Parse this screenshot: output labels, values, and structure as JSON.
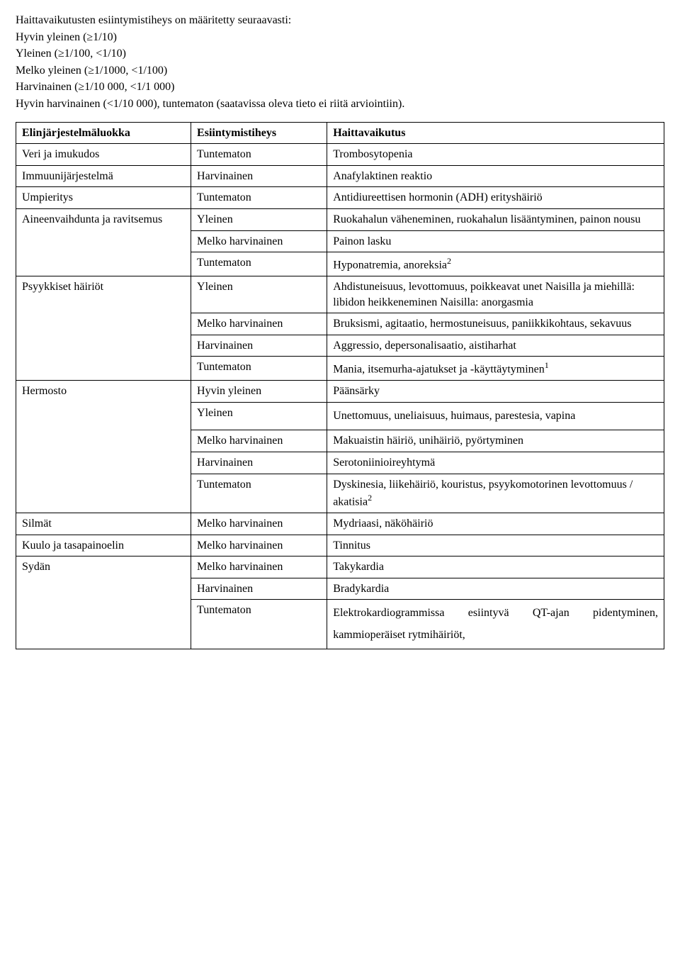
{
  "intro": {
    "l1": "Haittavaikutusten esiintymistiheys  on määritetty seuraavasti:",
    "l2": "Hyvin yleinen (≥1/10)",
    "l3": "Yleinen (≥1/100, <1/10)",
    "l4": "Melko yleinen (≥1/1000, <1/100)",
    "l5": "Harvinainen (≥1/10 000, <1/1 000)",
    "l6": "Hyvin harvinainen (<1/10 000), tuntematon (saatavissa oleva tieto ei riitä arviointiin)."
  },
  "headers": {
    "col1": "Elinjärjestelmäluokka",
    "col2": "Esiintymistiheys",
    "col3": "Haittavaikutus"
  },
  "rows": {
    "r1": {
      "system": "Veri ja imukudos",
      "freq": "Tuntematon",
      "effect": "Trombosytopenia"
    },
    "r2": {
      "system": "Immuunijärjestelmä",
      "freq": "Harvinainen",
      "effect": "Anafylaktinen reaktio"
    },
    "r3": {
      "system": "Umpieritys",
      "freq": "Tuntematon",
      "effect": "Antidiureettisen hormonin (ADH) erityshäiriö"
    },
    "r4": {
      "system": "Aineenvaihdunta ja ravitsemus",
      "freq": "Yleinen",
      "effect": "Ruokahalun väheneminen,\nruokahalun lisääntyminen, painon nousu"
    },
    "r5": {
      "freq": "Melko harvinainen",
      "effect": "Painon lasku"
    },
    "r6": {
      "freq": "Tuntematon",
      "effect_pre": "Hyponatremia, anoreksia",
      "sup": "2"
    },
    "r7": {
      "system": "Psyykkiset häiriöt",
      "freq": "Yleinen",
      "effect": "Ahdistuneisuus, levottomuus, poikkeavat unet\nNaisilla ja miehillä: libidon heikkeneminen\nNaisilla: anorgasmia"
    },
    "r8": {
      "freq": "Melko harvinainen",
      "effect": "Bruksismi, agitaatio, hermostuneisuus, paniikkikohtaus, sekavuus"
    },
    "r9": {
      "freq": "Harvinainen",
      "effect": "Aggressio, depersonalisaatio, aistiharhat"
    },
    "r10": {
      "freq": "Tuntematon",
      "effect_pre": "Mania, itsemurha-ajatukset ja -käyttäytyminen",
      "sup": "1"
    },
    "r11": {
      "system": "Hermosto",
      "freq": "Hyvin yleinen",
      "effect": "Päänsärky"
    },
    "r12": {
      "freq": "Yleinen",
      "effect": "Unettomuus, uneliaisuus, huimaus, parestesia, vapina"
    },
    "r13": {
      "freq": "Melko harvinainen",
      "effect": "Makuaistin häiriö, unihäiriö, pyörtyminen"
    },
    "r14": {
      "freq": "Harvinainen",
      "effect": "Serotoniinioireyhtymä"
    },
    "r15": {
      "freq": "Tuntematon",
      "effect_pre": "Dyskinesia, liikehäiriö, kouristus,\npsyykomotorinen levottomuus / akatisia",
      "sup": "2"
    },
    "r16": {
      "system": "Silmät",
      "freq": "Melko harvinainen",
      "effect": "Mydriaasi, näköhäiriö"
    },
    "r17": {
      "system": "Kuulo ja tasapainoelin",
      "freq": "Melko harvinainen",
      "effect": "Tinnitus"
    },
    "r18": {
      "system": "Sydän",
      "freq": "Melko harvinainen",
      "effect": "Takykardia"
    },
    "r19": {
      "freq": "Harvinainen",
      "effect": "Bradykardia"
    },
    "r20": {
      "freq": "Tuntematon",
      "effect": "Elektrokardiogrammissa esiintyvä QT-ajan pidentyminen, kammioperäiset rytmihäiriöt,"
    }
  }
}
